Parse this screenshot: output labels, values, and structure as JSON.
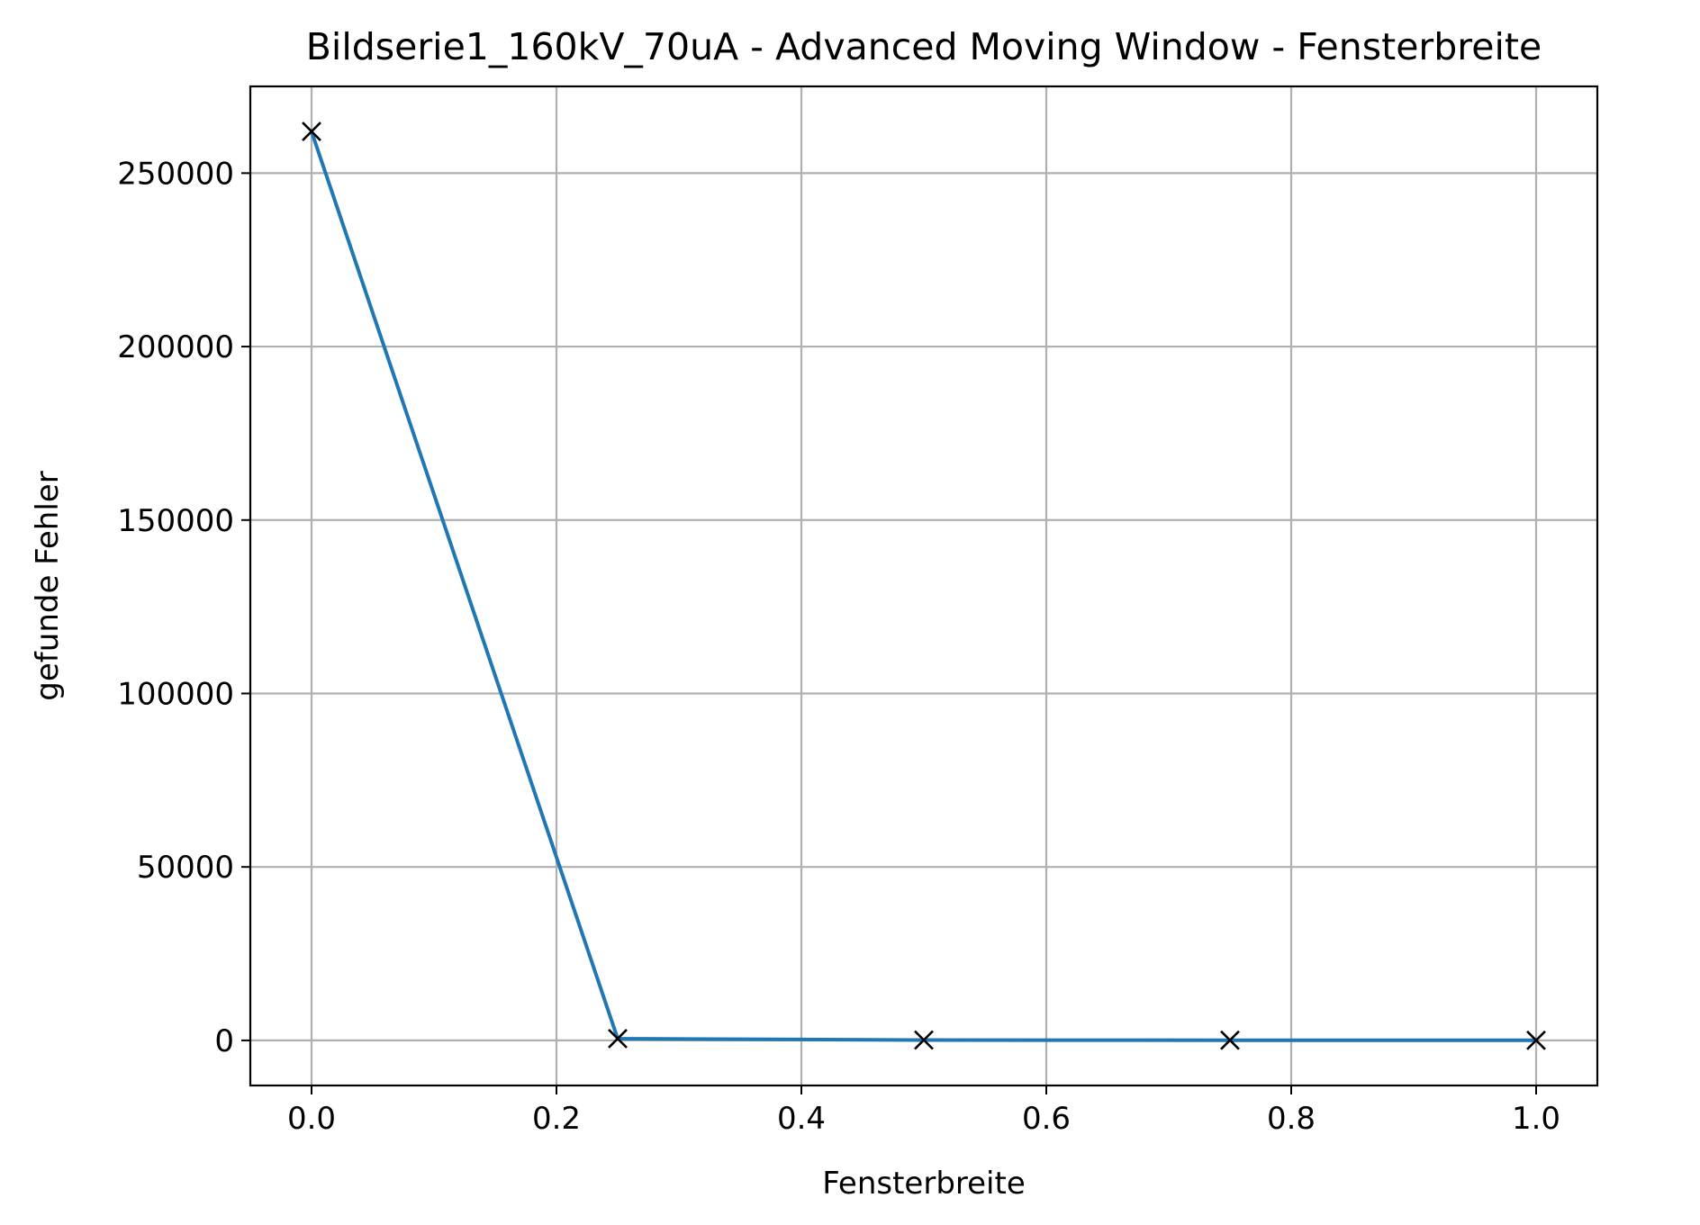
{
  "chart_data": {
    "type": "line",
    "title": "Bildserie1_160kV_70uA - Advanced Moving Window - Fensterbreite",
    "xlabel": "Fensterbreite",
    "ylabel": "gefunde Fehler",
    "x": [
      0.0,
      0.25,
      0.5,
      0.75,
      1.0
    ],
    "series": [
      {
        "values": [
          262000,
          500,
          100,
          50,
          30
        ],
        "color": "#1f77b4",
        "marker": "x",
        "marker_color": "#000000"
      }
    ],
    "xlim": [
      -0.05,
      1.05
    ],
    "ylim": [
      -13000,
      275000
    ],
    "xticks": [
      0.0,
      0.2,
      0.4,
      0.6,
      0.8,
      1.0
    ],
    "xtick_labels": [
      "0.0",
      "0.2",
      "0.4",
      "0.6",
      "0.8",
      "1.0"
    ],
    "yticks": [
      0,
      50000,
      100000,
      150000,
      200000,
      250000
    ],
    "ytick_labels": [
      "0",
      "50000",
      "100000",
      "150000",
      "200000",
      "250000"
    ],
    "grid": true,
    "legend": "none"
  }
}
